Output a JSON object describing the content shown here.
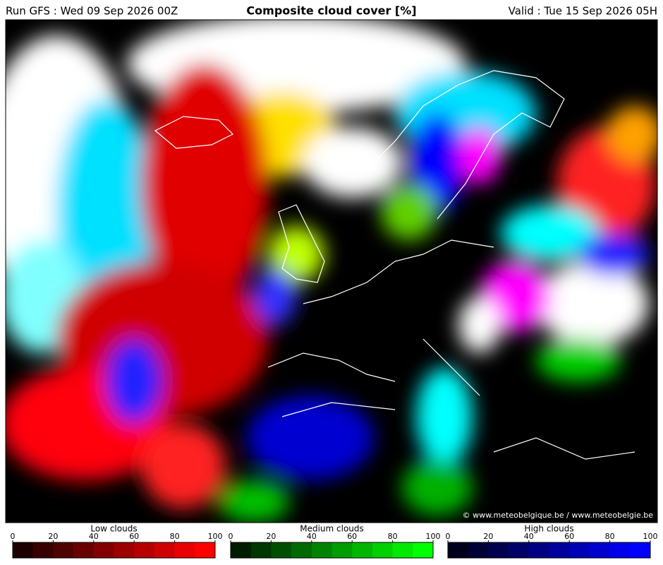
{
  "header": {
    "run": "Run GFS : Wed 09 Sep 2026 00Z",
    "title": "Composite cloud cover [%]",
    "valid": "Valid : Tue 15 Sep 2026 05H"
  },
  "map": {
    "credit": "© www.meteobelgique.be / www.meteobelgie.be"
  },
  "colorbars": [
    {
      "label": "Low clouds",
      "ticks": [
        0,
        20,
        40,
        60,
        80,
        100
      ],
      "colors": [
        "#1c0000",
        "#360000",
        "#4f0000",
        "#690000",
        "#830000",
        "#9c0000",
        "#b60000",
        "#cf0000",
        "#e90000",
        "#ff0000"
      ]
    },
    {
      "label": "Medium clouds",
      "ticks": [
        0,
        20,
        40,
        60,
        80,
        100
      ],
      "colors": [
        "#001c00",
        "#003600",
        "#004f00",
        "#006900",
        "#008300",
        "#009c00",
        "#00b600",
        "#00cf00",
        "#00e900",
        "#00ff00"
      ]
    },
    {
      "label": "High clouds",
      "ticks": [
        0,
        20,
        40,
        60,
        80,
        100
      ],
      "colors": [
        "#00001c",
        "#000036",
        "#00004f",
        "#000069",
        "#000083",
        "#00009c",
        "#0000b6",
        "#0000cf",
        "#0000e9",
        "#0000ff"
      ]
    }
  ]
}
